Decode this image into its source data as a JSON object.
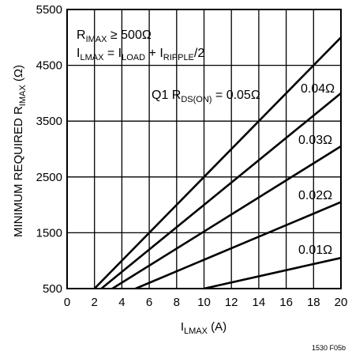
{
  "chart_data": {
    "type": "line",
    "xlabel": "I",
    "xlabel_sub": "LMAX",
    "xlabel_unit": " (A)",
    "ylabel": "MINIMUM REQUIRED R",
    "ylabel_sub": "IMAX",
    "ylabel_unit": " (Ω)",
    "xlim": [
      0,
      20
    ],
    "ylim": [
      500,
      5500
    ],
    "x_ticks": [
      0,
      2,
      4,
      6,
      8,
      10,
      12,
      14,
      16,
      18,
      20
    ],
    "y_ticks": [
      500,
      1500,
      2500,
      3500,
      4500,
      5500
    ],
    "grid": true,
    "annotations": {
      "line1_main": "R",
      "line1_sub": "IMAX",
      "line1_rest": " ≥ 500Ω",
      "line2_I1": "I",
      "line2_sub1": "LMAX",
      "line2_eq": " = I",
      "line2_sub2": "LOAD",
      "line2_plus": " + I",
      "line2_sub3": "RIPPLE",
      "line2_end": "/2",
      "q1_prefix": "Q1 R",
      "q1_sub": "DS(ON)",
      "q1_value": " = 0.05Ω"
    },
    "series": [
      {
        "name": "0.05Ω",
        "x": [
          2.0,
          20
        ],
        "y": [
          500,
          5000
        ]
      },
      {
        "name": "0.04Ω",
        "x": [
          2.5,
          20
        ],
        "y": [
          500,
          4000
        ]
      },
      {
        "name": "0.03Ω",
        "x": [
          3.3,
          20
        ],
        "y": [
          500,
          3050
        ]
      },
      {
        "name": "0.02Ω",
        "x": [
          5.0,
          20
        ],
        "y": [
          500,
          2050
        ]
      },
      {
        "name": "0.01Ω",
        "x": [
          10.0,
          20
        ],
        "y": [
          500,
          1050
        ]
      }
    ],
    "series_label_names": [
      "0.04Ω",
      "0.03Ω",
      "0.02Ω",
      "0.01Ω"
    ],
    "figure_id": "1530 F05b"
  }
}
